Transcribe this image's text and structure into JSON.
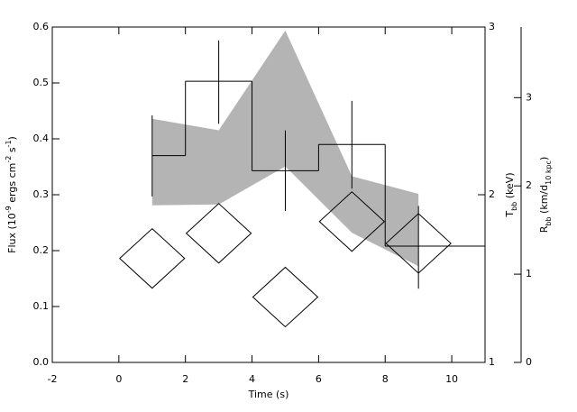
{
  "chart_data": {
    "type": "line",
    "x_label": "Time (s)",
    "y_label": [
      "Flux (10",
      "-9",
      " ergs cm",
      "-2",
      " s",
      "-1",
      ")"
    ],
    "y2_label": [
      "T",
      "bb",
      " (keV)"
    ],
    "y3_label": [
      "R",
      "bb",
      " (km/d",
      "10 kpc",
      ")"
    ],
    "xlim": [
      -2,
      11
    ],
    "xticks": [
      -2,
      0,
      2,
      4,
      6,
      8,
      10
    ],
    "ylim": [
      0,
      0.6
    ],
    "yticks": [
      {
        "value": 0,
        "label": "0.0"
      },
      0.1,
      0.2,
      0.3,
      0.4,
      0.5,
      0.6
    ],
    "y2lim": [
      1,
      3
    ],
    "y2ticks": [
      1,
      2,
      3
    ],
    "y3lim": [
      0,
      3.8
    ],
    "y3ticks": [
      0,
      1,
      2,
      3
    ],
    "series": [
      {
        "kind": "band",
        "axis": "y3",
        "color": "#b4b4b4",
        "x": [
          1,
          3,
          5,
          7,
          9
        ],
        "lower": [
          1.78,
          1.79,
          2.22,
          1.47,
          1.09
        ],
        "upper": [
          2.76,
          2.63,
          3.76,
          2.11,
          1.91
        ]
      },
      {
        "kind": "diamond",
        "axis": "y2",
        "color": "#000000",
        "x": [
          1,
          3,
          5,
          7,
          9
        ],
        "values": [
          1.62,
          1.77,
          1.39,
          1.84,
          1.71
        ]
      },
      {
        "kind": "step",
        "color": "#000000",
        "x": [
          1,
          3,
          5,
          7,
          9
        ],
        "bin_edges": [
          1,
          2,
          4,
          6,
          8,
          11
        ],
        "values": [
          0.37,
          0.503,
          0.343,
          0.39,
          0.208
        ],
        "err_lo": [
          0.297,
          0.427,
          0.271,
          0.311,
          0.132
        ],
        "err_hi": [
          0.442,
          0.576,
          0.415,
          0.468,
          0.28
        ]
      }
    ]
  }
}
